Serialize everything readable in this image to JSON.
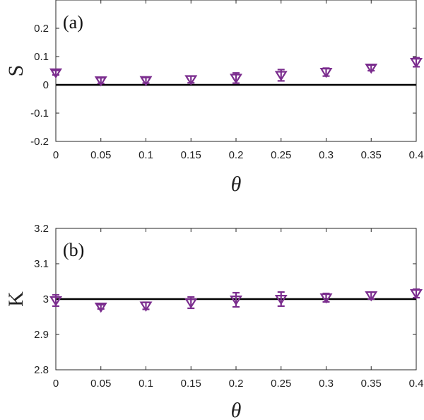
{
  "chart_data": [
    {
      "type": "scatter",
      "panel_tag": "(a)",
      "xlabel": "θ",
      "ylabel": "S",
      "xlim": [
        0,
        0.4
      ],
      "ylim": [
        -0.2,
        0.3
      ],
      "x_ticks": [
        0,
        0.05,
        0.1,
        0.15,
        0.2,
        0.25,
        0.3,
        0.35,
        0.4
      ],
      "x_tick_labels": [
        "0",
        "0.05",
        "0.1",
        "0.15",
        "0.2",
        "0.25",
        "0.3",
        "0.35",
        "0.4"
      ],
      "y_ticks": [
        -0.2,
        -0.1,
        0,
        0.1,
        0.2
      ],
      "y_tick_labels": [
        "-0.2",
        "-0.1",
        "0",
        "0.1",
        "0.2"
      ],
      "reference_line": 0,
      "marker": "downward-triangle",
      "color": "#7B2D8E",
      "line_color": "#000000",
      "x": [
        0,
        0.05,
        0.1,
        0.15,
        0.2,
        0.25,
        0.3,
        0.35,
        0.4
      ],
      "y": [
        0.043,
        0.015,
        0.016,
        0.019,
        0.024,
        0.034,
        0.045,
        0.06,
        0.08
      ],
      "err": [
        0.008,
        0.01,
        0.01,
        0.012,
        0.018,
        0.02,
        0.014,
        0.01,
        0.016
      ]
    },
    {
      "type": "scatter",
      "panel_tag": "(b)",
      "xlabel": "θ",
      "ylabel": "K",
      "xlim": [
        0,
        0.4
      ],
      "ylim": [
        2.8,
        3.2
      ],
      "x_ticks": [
        0,
        0.05,
        0.1,
        0.15,
        0.2,
        0.25,
        0.3,
        0.35,
        0.4
      ],
      "x_tick_labels": [
        "0",
        "0.05",
        "0.1",
        "0.15",
        "0.2",
        "0.25",
        "0.3",
        "0.35",
        "0.4"
      ],
      "y_ticks": [
        2.8,
        2.9,
        3,
        3.1,
        3.2
      ],
      "y_tick_labels": [
        "2.8",
        "2.9",
        "3",
        "3.1",
        "3.2"
      ],
      "reference_line": 3,
      "marker": "downward-triangle",
      "color": "#7B2D8E",
      "line_color": "#000000",
      "x": [
        0,
        0.05,
        0.1,
        0.15,
        0.2,
        0.25,
        0.3,
        0.35,
        0.4
      ],
      "y": [
        2.996,
        2.978,
        2.981,
        2.99,
        2.998,
        3.0,
        3.004,
        3.01,
        3.016
      ],
      "err": [
        0.016,
        0.006,
        0.01,
        0.016,
        0.02,
        0.02,
        0.012,
        0.01,
        0.012
      ]
    }
  ]
}
